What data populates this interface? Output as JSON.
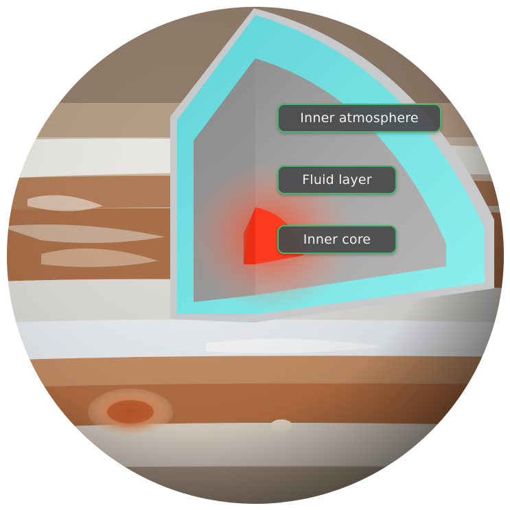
{
  "labels": {
    "inner_atmosphere": "Inner atmosphere",
    "fluid_layer": "Fluid layer",
    "inner_core": "Inner core"
  },
  "colors": {
    "label_border": "#3fb86a",
    "label_background": "#484a4c",
    "atmosphere_shell": "#6fe3e6",
    "interior": "#9e9e9e",
    "core": "#ff3a1e"
  }
}
